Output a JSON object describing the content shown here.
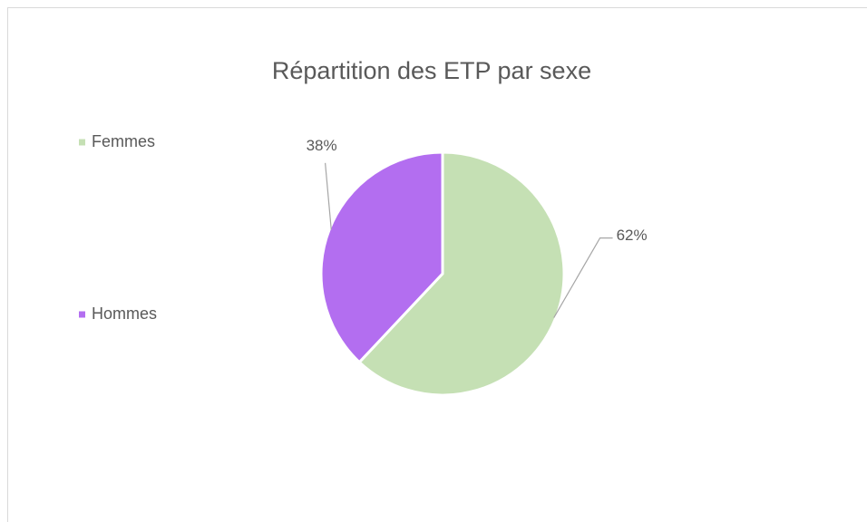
{
  "chart_data": {
    "type": "pie",
    "title": "Répartition des ETP par sexe",
    "categories": [
      "Femmes",
      "Hommes"
    ],
    "values": [
      62,
      38
    ],
    "value_labels": [
      "62%",
      "38%"
    ],
    "colors": [
      "#c5e0b4",
      "#b36ef0"
    ],
    "legend": "left"
  }
}
